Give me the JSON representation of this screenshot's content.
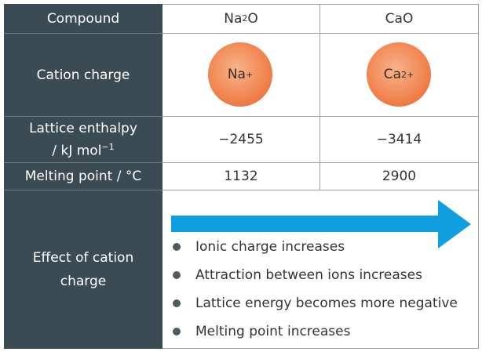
{
  "rows": {
    "compound": {
      "label": "Compound",
      "col1": {
        "base": "Na",
        "sub": "2",
        "tail": "O"
      },
      "col2": "CaO"
    },
    "cation_charge": {
      "label": "Cation charge",
      "col1": {
        "symbol": "Na",
        "charge": "+"
      },
      "col2": {
        "symbol": "Ca",
        "charge": "2+"
      }
    },
    "lattice_enthalpy": {
      "label_line1": "Lattice enthalpy",
      "label_line2": "/ kJ mol",
      "label_sup": "−1",
      "col1": "−2455",
      "col2": "−3414"
    },
    "melting_point": {
      "label": "Melting point / °C",
      "col1": "1132",
      "col2": "2900"
    },
    "effect": {
      "label_line1": "Effect of cation",
      "label_line2": "charge",
      "items": [
        "Ionic charge increases",
        "Attraction between ions increases",
        "Lattice energy becomes more negative",
        "Melting point increases"
      ]
    }
  },
  "colors": {
    "label_column": "#3b4b53",
    "ion_fill": "#f18752",
    "arrow": "#0f9ee0"
  },
  "icons": {
    "arrow": "right-arrow-icon",
    "bullet": "bullet-icon"
  }
}
